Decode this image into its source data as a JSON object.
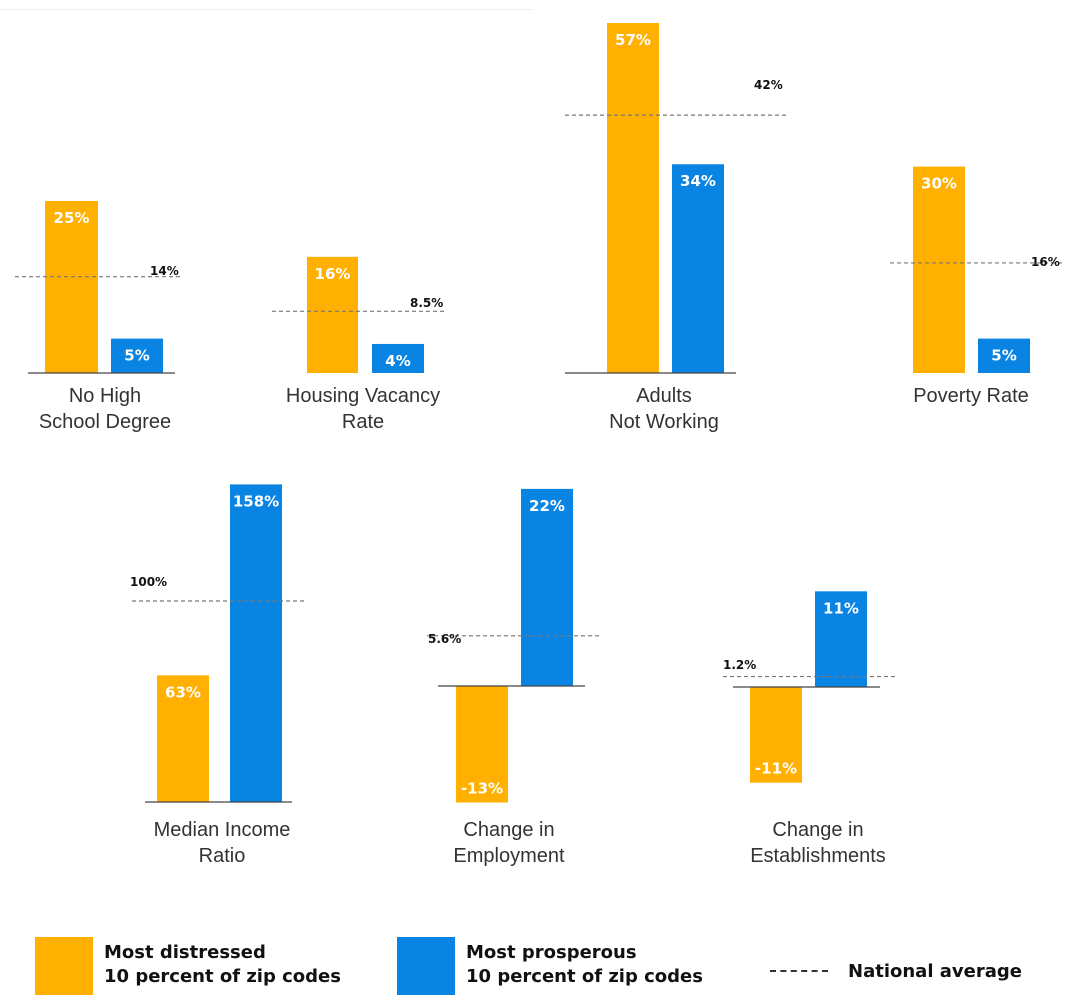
{
  "colors": {
    "distressed": "#FFB000",
    "prosperous": "#0A84E2",
    "national": "#777777",
    "baseline": "#444444",
    "bar_label": "#ffffff",
    "category_label": "#333333",
    "national_label": "#111111"
  },
  "chart_data": [
    {
      "type": "bar",
      "category": "No High School Degree",
      "label_lines": [
        "No High",
        "School Degree"
      ],
      "values": {
        "distressed": 25,
        "prosperous": 5
      },
      "value_labels": {
        "distressed": "25%",
        "prosperous": "5%"
      },
      "national_average": 14,
      "national_label": "14%",
      "units": "percent"
    },
    {
      "type": "bar",
      "category": "Housing Vacancy Rate",
      "label_lines": [
        "Housing Vacancy",
        "Rate"
      ],
      "values": {
        "distressed": 16,
        "prosperous": 4
      },
      "value_labels": {
        "distressed": "16%",
        "prosperous": "4%"
      },
      "national_average": 8.5,
      "national_label": "8.5%",
      "units": "percent"
    },
    {
      "type": "bar",
      "category": "Adults Not Working",
      "label_lines": [
        "Adults",
        "Not Working"
      ],
      "values": {
        "distressed": 57,
        "prosperous": 34
      },
      "value_labels": {
        "distressed": "57%",
        "prosperous": "34%"
      },
      "national_average": 42,
      "national_label": "42%",
      "units": "percent"
    },
    {
      "type": "bar",
      "category": "Poverty Rate",
      "label_lines": [
        "Poverty Rate"
      ],
      "values": {
        "distressed": 30,
        "prosperous": 5
      },
      "value_labels": {
        "distressed": "30%",
        "prosperous": "5%"
      },
      "national_average": 16,
      "national_label": "16%",
      "units": "percent"
    },
    {
      "type": "bar",
      "category": "Median Income Ratio",
      "label_lines": [
        "Median Income",
        "Ratio"
      ],
      "values": {
        "distressed": 63,
        "prosperous": 158
      },
      "value_labels": {
        "distressed": "63%",
        "prosperous": "158%"
      },
      "national_average": 100,
      "national_label": "100%",
      "units": "percent"
    },
    {
      "type": "bar",
      "category": "Change in Employment",
      "label_lines": [
        "Change in",
        "Employment"
      ],
      "values": {
        "distressed": -13,
        "prosperous": 22
      },
      "value_labels": {
        "distressed": "-13%",
        "prosperous": "22%"
      },
      "national_average": 5.6,
      "national_label": "5.6%",
      "units": "percent"
    },
    {
      "type": "bar",
      "category": "Change in Establishments",
      "label_lines": [
        "Change in",
        "Establishments"
      ],
      "values": {
        "distressed": -11,
        "prosperous": 11
      },
      "value_labels": {
        "distressed": "-11%",
        "prosperous": "11%"
      },
      "national_average": 1.2,
      "national_label": "1.2%",
      "units": "percent"
    }
  ],
  "legend": {
    "distressed": "Most distressed\n10 percent of zip codes",
    "prosperous": "Most prosperous\n10 percent of zip codes",
    "national": "National average"
  }
}
